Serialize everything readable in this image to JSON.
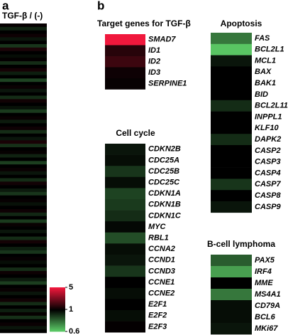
{
  "panel_a": {
    "label": "a",
    "title": "TGF-β / (-)",
    "values": [
      1.05,
      0.92,
      1.0,
      1.1,
      0.95,
      1.0,
      0.88,
      1.2,
      1.0,
      0.97,
      1.03,
      0.9,
      1.0,
      1.15,
      0.93,
      1.0,
      0.85,
      1.0,
      1.08,
      0.95,
      1.0,
      0.9,
      1.12,
      1.0,
      0.96,
      0.87,
      1.0,
      1.06,
      0.94,
      1.0,
      1.1,
      0.9,
      1.0,
      0.95,
      1.18,
      0.89,
      1.0,
      1.04,
      0.92,
      1.0,
      0.86,
      1.0,
      1.07,
      0.95,
      1.0,
      0.9,
      1.13,
      1.0,
      0.94,
      0.88,
      1.0,
      1.05,
      0.96,
      1.0,
      1.1,
      0.91,
      1.0,
      0.87,
      1.06,
      1.0,
      0.95,
      1.0,
      0.9,
      1.14,
      1.0,
      0.93,
      0.88,
      1.0,
      1.05,
      0.97,
      1.0,
      0.9,
      1.09,
      1.0,
      0.94,
      0.86,
      1.0,
      1.06,
      0.95,
      1.0,
      1.12,
      0.9,
      1.0,
      0.93,
      1.04,
      0.89,
      1.0,
      1.07,
      0.95,
      1.0
    ]
  },
  "colorbar": {
    "lim": [
      0.6,
      5
    ],
    "ticks": [
      5,
      1,
      0.6
    ],
    "low_color": "#5fd36a",
    "mid_color": "#000000",
    "high_color": "#f0183c"
  },
  "panel_b": {
    "label": "b",
    "groups": [
      {
        "title": "Target genes for TGF-β",
        "genes": [
          "SMAD7",
          "ID1",
          "ID2",
          "ID3",
          "SERPINE1"
        ],
        "values": [
          5,
          1.3,
          1.5,
          1.1,
          1.05
        ]
      },
      {
        "title": "Apoptosis",
        "genes": [
          "FAS",
          "BCL2L1",
          "MCL1",
          "BAX",
          "BAK1",
          "BID",
          "BCL2L11",
          "INPPL1",
          "KLF10",
          "DAPK2",
          "CASP2",
          "CASP3",
          "CASP4",
          "CASP7",
          "CASP8",
          "CASP9"
        ],
        "values": [
          0.75,
          0.62,
          0.95,
          1.0,
          1.0,
          1.0,
          0.9,
          1.0,
          1.0,
          0.9,
          1.0,
          1.0,
          1.0,
          0.88,
          1.0,
          0.95
        ]
      },
      {
        "title": "Cell cycle",
        "genes": [
          "CDKN2B",
          "CDC25A",
          "CDC25B",
          "CDC25C",
          "CDKN1A",
          "CDKN1B",
          "CDKN1C",
          "MYC",
          "RBL1",
          "CCNA2",
          "CCND1",
          "CCND3",
          "CCNE1",
          "CCNE2",
          "E2F1",
          "E2F2",
          "E2F3"
        ],
        "values": [
          0.95,
          0.97,
          0.88,
          0.97,
          0.85,
          0.87,
          0.9,
          0.98,
          0.83,
          0.97,
          0.95,
          0.88,
          1.0,
          0.97,
          1.0,
          0.97,
          1.03
        ]
      },
      {
        "title": "B-cell lymphoma",
        "genes": [
          "PAX5",
          "IRF4",
          "MME",
          "MS4A1",
          "CD79A",
          "BCL6",
          "MKi67"
        ],
        "values": [
          0.8,
          0.68,
          1.0,
          0.75,
          0.97,
          0.97,
          0.95
        ]
      }
    ]
  }
}
